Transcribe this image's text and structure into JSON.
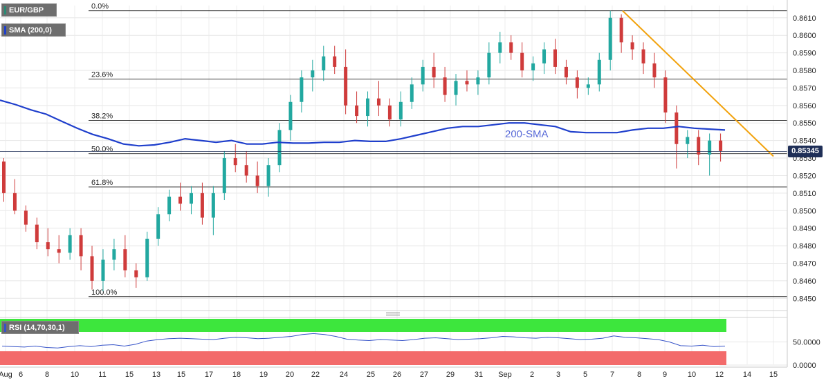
{
  "legend": {
    "symbol": "EUR/GBP",
    "sma": "SMA (200,0)",
    "rsi": "RSI (14,70,30,1)"
  },
  "price_tag": "0.85345",
  "annotation": "200-SMA",
  "colors": {
    "bull": "#22a8a0",
    "bear": "#cf3b3b",
    "sma": "#1f3fcc",
    "trend": "#f2a20c",
    "rsi_line": "#3552c8",
    "rsi_over": "#3de63d",
    "rsi_under": "#f36b6b"
  },
  "chart_data": [
    {
      "type": "candlestick",
      "ylim": [
        0.8445,
        0.8617
      ],
      "y_ticks": [
        "0.8610",
        "0.8600",
        "0.8590",
        "0.8580",
        "0.8570",
        "0.8560",
        "0.8550",
        "0.8540",
        "0.8530",
        "0.8520",
        "0.8510",
        "0.8500",
        "0.8490",
        "0.8480",
        "0.8470",
        "0.8460",
        "0.8450"
      ],
      "x_ticks": [
        "Aug",
        "6",
        "8",
        "10",
        "11",
        "15",
        "13",
        "15",
        "17",
        "18",
        "19",
        "20",
        "22",
        "24",
        "25",
        "26",
        "27",
        "29",
        "31",
        "Sep",
        "2",
        "3",
        "5",
        "7",
        "8",
        "9",
        "10",
        "12",
        "14",
        "15"
      ],
      "current_price": 0.85345,
      "fib_levels": [
        {
          "label": "0.0%",
          "value": 0.8614
        },
        {
          "label": "23.6%",
          "value": 0.8575
        },
        {
          "label": "38.2%",
          "value": 0.85515
        },
        {
          "label": "50.0%",
          "value": 0.85325
        },
        {
          "label": "61.8%",
          "value": 0.85135
        },
        {
          "label": "100.0%",
          "value": 0.8451
        }
      ],
      "trendline": {
        "from": [
          7.2,
          0.8614
        ],
        "to": [
          12.55,
          0.8531
        ]
      },
      "sma200": [
        [
          3.8,
          0.8563
        ],
        [
          5.0,
          0.85605
        ],
        [
          6.5,
          0.85575
        ],
        [
          8.0,
          0.8555
        ],
        [
          9.5,
          0.8551
        ],
        [
          10.6,
          0.8547
        ],
        [
          11.5,
          0.85435
        ],
        [
          12.5,
          0.8541
        ],
        [
          13.6,
          0.8538
        ],
        [
          14.4,
          0.8537
        ],
        [
          15.5,
          0.85375
        ],
        [
          16.5,
          0.8539
        ],
        [
          17.4,
          0.8541
        ],
        [
          18.5,
          0.854
        ],
        [
          19.5,
          0.8539
        ],
        [
          20.5,
          0.854
        ],
        [
          21.3,
          0.8538
        ],
        [
          22.3,
          0.8538
        ],
        [
          23.3,
          0.8539
        ],
        [
          24.3,
          0.85385
        ],
        [
          25.3,
          0.85385
        ],
        [
          26.3,
          0.8539
        ],
        [
          27.3,
          0.8539
        ],
        [
          28.3,
          0.854
        ],
        [
          29.3,
          0.85395
        ],
        [
          30.3,
          0.85395
        ],
        [
          31.3,
          0.8541
        ],
        [
          32.3,
          0.8543
        ],
        [
          33.3,
          0.8545
        ],
        [
          34.3,
          0.8547
        ],
        [
          35.3,
          0.8548
        ],
        [
          36.3,
          0.8548
        ],
        [
          37.3,
          0.8549
        ],
        [
          38.3,
          0.855
        ],
        [
          39.3,
          0.855
        ],
        [
          40.3,
          0.8549
        ],
        [
          41.3,
          0.8548
        ],
        [
          42.3,
          0.8545
        ],
        [
          43.3,
          0.85445
        ],
        [
          44.3,
          0.85445
        ],
        [
          45.3,
          0.85445
        ],
        [
          46.3,
          0.8546
        ],
        [
          47.3,
          0.8547
        ],
        [
          48.3,
          0.8547
        ],
        [
          49.3,
          0.8548
        ],
        [
          50.3,
          0.8547
        ],
        [
          51.3,
          0.85465
        ],
        [
          52.4,
          0.8546
        ]
      ],
      "candles_ohlc": [
        [
          0.8528,
          0.853,
          0.8505,
          0.851
        ],
        [
          0.851,
          0.8518,
          0.8498,
          0.85
        ],
        [
          0.85,
          0.8503,
          0.8488,
          0.8492
        ],
        [
          0.8492,
          0.8496,
          0.8478,
          0.8482
        ],
        [
          0.8482,
          0.849,
          0.8474,
          0.8478
        ],
        [
          0.8478,
          0.8486,
          0.847,
          0.8476
        ],
        [
          0.8476,
          0.849,
          0.8472,
          0.8486
        ],
        [
          0.8486,
          0.849,
          0.8466,
          0.8474
        ],
        [
          0.8474,
          0.848,
          0.8455,
          0.846
        ],
        [
          0.846,
          0.8478,
          0.8454,
          0.8472
        ],
        [
          0.8472,
          0.8484,
          0.8466,
          0.8478
        ],
        [
          0.8478,
          0.8486,
          0.8462,
          0.8466
        ],
        [
          0.8466,
          0.847,
          0.8456,
          0.8462
        ],
        [
          0.8462,
          0.8488,
          0.846,
          0.8484
        ],
        [
          0.8484,
          0.8502,
          0.848,
          0.8498
        ],
        [
          0.8498,
          0.8512,
          0.8494,
          0.8508
        ],
        [
          0.8508,
          0.8516,
          0.85,
          0.8504
        ],
        [
          0.8504,
          0.8514,
          0.8498,
          0.851
        ],
        [
          0.851,
          0.8516,
          0.8492,
          0.8496
        ],
        [
          0.8496,
          0.8514,
          0.8486,
          0.851
        ],
        [
          0.851,
          0.8534,
          0.8506,
          0.853
        ],
        [
          0.853,
          0.8538,
          0.8522,
          0.8526
        ],
        [
          0.8526,
          0.8534,
          0.8516,
          0.852
        ],
        [
          0.852,
          0.8528,
          0.851,
          0.8514
        ],
        [
          0.8514,
          0.853,
          0.8508,
          0.8526
        ],
        [
          0.8526,
          0.855,
          0.8522,
          0.8546
        ],
        [
          0.8546,
          0.8566,
          0.854,
          0.8562
        ],
        [
          0.8562,
          0.858,
          0.8556,
          0.8576
        ],
        [
          0.8576,
          0.8586,
          0.8568,
          0.858
        ],
        [
          0.858,
          0.8594,
          0.8574,
          0.8588
        ],
        [
          0.8588,
          0.8594,
          0.8578,
          0.8582
        ],
        [
          0.8582,
          0.8592,
          0.8555,
          0.856
        ],
        [
          0.856,
          0.8568,
          0.855,
          0.8554
        ],
        [
          0.8554,
          0.8568,
          0.8548,
          0.8564
        ],
        [
          0.8564,
          0.8574,
          0.8554,
          0.856
        ],
        [
          0.856,
          0.8564,
          0.8548,
          0.8552
        ],
        [
          0.8552,
          0.8568,
          0.8548,
          0.8562
        ],
        [
          0.8562,
          0.8576,
          0.8558,
          0.8572
        ],
        [
          0.8572,
          0.8586,
          0.8568,
          0.8582
        ],
        [
          0.8582,
          0.859,
          0.857,
          0.8576
        ],
        [
          0.8576,
          0.8582,
          0.8562,
          0.8566
        ],
        [
          0.8566,
          0.8578,
          0.856,
          0.8574
        ],
        [
          0.8574,
          0.858,
          0.8568,
          0.8572
        ],
        [
          0.8572,
          0.858,
          0.8566,
          0.8576
        ],
        [
          0.8576,
          0.8596,
          0.8572,
          0.859
        ],
        [
          0.859,
          0.8602,
          0.8584,
          0.8596
        ],
        [
          0.8596,
          0.86,
          0.8586,
          0.859
        ],
        [
          0.859,
          0.8596,
          0.8576,
          0.858
        ],
        [
          0.858,
          0.8588,
          0.8574,
          0.8584
        ],
        [
          0.8584,
          0.8596,
          0.8578,
          0.8592
        ],
        [
          0.8592,
          0.8598,
          0.8578,
          0.8582
        ],
        [
          0.8582,
          0.8586,
          0.8572,
          0.8576
        ],
        [
          0.8576,
          0.858,
          0.8564,
          0.857
        ],
        [
          0.857,
          0.8576,
          0.8566,
          0.8572
        ],
        [
          0.8572,
          0.859,
          0.8568,
          0.8586
        ],
        [
          0.8586,
          0.8614,
          0.858,
          0.861
        ],
        [
          0.861,
          0.8612,
          0.859,
          0.8596
        ],
        [
          0.8596,
          0.86,
          0.8586,
          0.8592
        ],
        [
          0.8592,
          0.8596,
          0.8578,
          0.8584
        ],
        [
          0.8584,
          0.859,
          0.857,
          0.8576
        ],
        [
          0.8576,
          0.858,
          0.855,
          0.8556
        ],
        [
          0.8556,
          0.856,
          0.8524,
          0.8538
        ],
        [
          0.8538,
          0.8546,
          0.853,
          0.8542
        ],
        [
          0.8542,
          0.8546,
          0.8526,
          0.8532
        ],
        [
          0.8532,
          0.8544,
          0.852,
          0.854
        ],
        [
          0.854,
          0.8544,
          0.8528,
          0.8534
        ]
      ]
    },
    {
      "type": "line",
      "title": "RSI (14,70,30,1)",
      "y_ticks": [
        "50.0000",
        "0.0000"
      ],
      "levels": {
        "overbought": 70,
        "oversold": 30
      },
      "ylim": [
        0,
        100
      ],
      "values": [
        41,
        40,
        39,
        41,
        38,
        37,
        40,
        42,
        40,
        43,
        44,
        41,
        45,
        52,
        55,
        57,
        58,
        57,
        56,
        55,
        58,
        60,
        59,
        57,
        58,
        60,
        62,
        66,
        68,
        66,
        62,
        56,
        54,
        53,
        55,
        54,
        53,
        55,
        58,
        59,
        57,
        55,
        56,
        57,
        59,
        62,
        61,
        59,
        58,
        60,
        59,
        57,
        55,
        56,
        58,
        63,
        60,
        59,
        57,
        55,
        50,
        42,
        41,
        43,
        40,
        41
      ]
    }
  ]
}
